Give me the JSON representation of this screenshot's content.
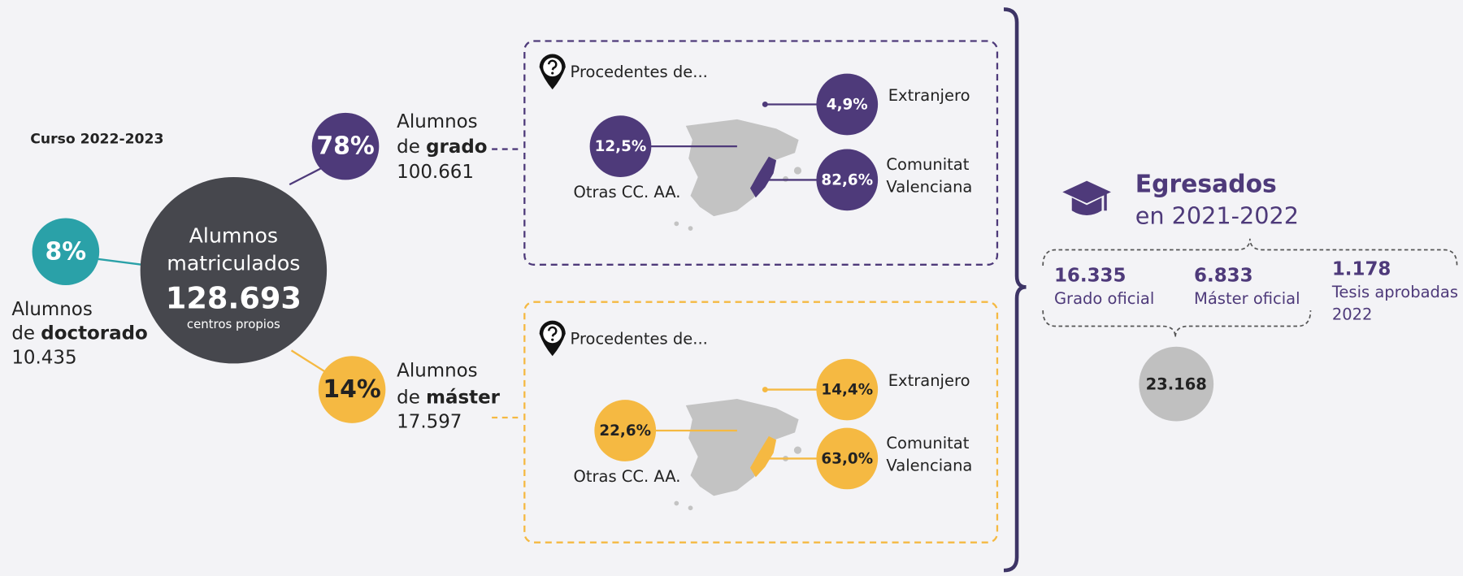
{
  "course": "Curso 2022-2023",
  "total": {
    "line1": "Alumnos",
    "line2": "matriculados",
    "value": "128.693",
    "note": "centros propios"
  },
  "doctorado": {
    "percent": "8%",
    "line1": "Alumnos",
    "prefix": "de ",
    "bold": "doctorado",
    "count": "10.435"
  },
  "grado": {
    "percent": "78%",
    "line1": "Alumnos",
    "prefix": "de ",
    "bold": "grado",
    "count": "100.661",
    "origin": {
      "title": "Procedentes de...",
      "extranjero": {
        "percent": "4,9%",
        "label": "Extranjero"
      },
      "otras": {
        "percent": "12,5%",
        "label": "Otras CC. AA."
      },
      "valenciana": {
        "percent": "82,6%",
        "label_lines": [
          "Comunitat",
          "Valenciana"
        ]
      }
    }
  },
  "master": {
    "percent": "14%",
    "line1": "Alumnos",
    "prefix": "de ",
    "bold": "máster",
    "count": "17.597",
    "origin": {
      "title": "Procedentes de...",
      "extranjero": {
        "percent": "14,4%",
        "label": "Extranjero"
      },
      "otras": {
        "percent": "22,6%",
        "label": "Otras CC. AA."
      },
      "valenciana": {
        "percent": "63,0%",
        "label_lines": [
          "Comunitat",
          "Valenciana"
        ]
      }
    }
  },
  "egresados": {
    "title": "Egresados",
    "subtitle": "en 2021-2022",
    "items": [
      {
        "value": "16.335",
        "label_lines": [
          "Grado oficial"
        ]
      },
      {
        "value": "6.833",
        "label_lines": [
          "Máster oficial"
        ]
      },
      {
        "value": "1.178",
        "label_lines": [
          "Tesis aprobadas",
          "2022"
        ]
      }
    ],
    "total": "23.168"
  }
}
